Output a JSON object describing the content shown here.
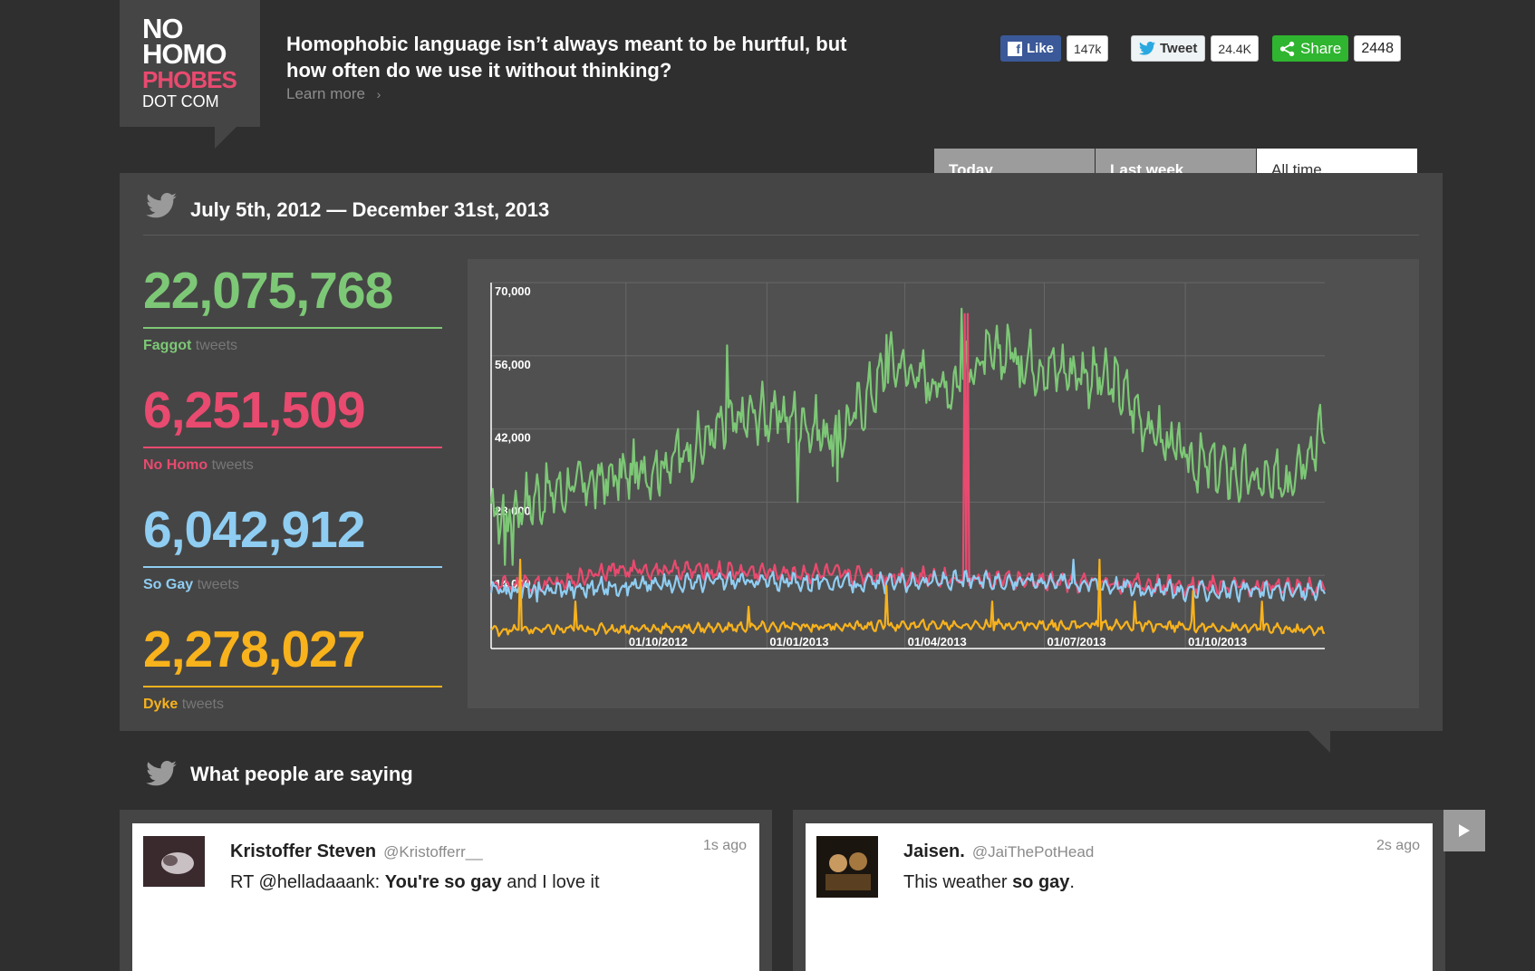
{
  "logo": {
    "line1": "NO",
    "line2": "HOMO",
    "line3": "PHOBES",
    "line4": "DOT COM"
  },
  "header": {
    "tagline": "Homophobic language isn’t always meant to be hurtful, but how often do we use it without thinking?",
    "learn_more": "Learn more"
  },
  "social": {
    "like_label": "Like",
    "like_count": "147k",
    "tweet_label": "Tweet",
    "tweet_count": "24.4K",
    "share_label": "Share",
    "share_count": "2448"
  },
  "tabs": [
    {
      "label": "Today",
      "active": false
    },
    {
      "label": "Last week",
      "active": false
    },
    {
      "label": "All time",
      "active": true
    }
  ],
  "panel": {
    "date_range": "July 5th, 2012 — December 31st, 2013"
  },
  "stats": [
    {
      "number": "22,075,768",
      "term": "Faggot",
      "suffix": "tweets",
      "color": "#7dc876"
    },
    {
      "number": "6,251,509",
      "term": "No Homo",
      "suffix": "tweets",
      "color": "#e94a6f"
    },
    {
      "number": "6,042,912",
      "term": "So Gay",
      "suffix": "tweets",
      "color": "#8fcdf2"
    },
    {
      "number": "2,278,027",
      "term": "Dyke",
      "suffix": "tweets",
      "color": "#f8b21c"
    }
  ],
  "chart_data": {
    "type": "line",
    "xlim": [
      "2012-07-05",
      "2013-12-31"
    ],
    "ylim": [
      0,
      70000
    ],
    "yticks": [
      "70,000",
      "56,000",
      "42,000",
      "28,000",
      "14,000"
    ],
    "xticks": [
      "01/10/2012",
      "01/01/2013",
      "01/04/2013",
      "01/07/2013",
      "01/10/2013"
    ],
    "grid": true,
    "series": [
      {
        "name": "Faggot",
        "color": "#7dc876",
        "anchors": [
          [
            0,
            25000
          ],
          [
            15,
            27000
          ],
          [
            40,
            30000
          ],
          [
            70,
            32000
          ],
          [
            100,
            34000
          ],
          [
            120,
            36000
          ],
          [
            150,
            42000
          ],
          [
            175,
            45000
          ],
          [
            200,
            44000
          ],
          [
            225,
            40000
          ],
          [
            250,
            50000
          ],
          [
            262,
            55000
          ],
          [
            280,
            52000
          ],
          [
            300,
            50000
          ],
          [
            320,
            55000
          ],
          [
            340,
            57000
          ],
          [
            360,
            54000
          ],
          [
            385,
            53000
          ],
          [
            410,
            50000
          ],
          [
            430,
            42000
          ],
          [
            455,
            36000
          ],
          [
            480,
            34000
          ],
          [
            510,
            31000
          ],
          [
            545,
            42000
          ]
        ],
        "spikes": [
          [
            9,
            16000
          ],
          [
            14,
            16000
          ],
          [
            122,
            42000
          ],
          [
            154,
            58000
          ],
          [
            200,
            28000
          ],
          [
            226,
            32000
          ],
          [
            258,
            60000
          ],
          [
            307,
            65000
          ],
          [
            345,
            50000
          ],
          [
            520,
            30000
          ]
        ],
        "noise": 7000
      },
      {
        "name": "No Homo",
        "color": "#e94a6f",
        "anchors": [
          [
            0,
            12000
          ],
          [
            50,
            12500
          ],
          [
            70,
            15000
          ],
          [
            120,
            15000
          ],
          [
            200,
            14500
          ],
          [
            300,
            13500
          ],
          [
            400,
            12500
          ],
          [
            545,
            11500
          ]
        ],
        "spikes": [
          [
            309,
            64000
          ],
          [
            311,
            64000
          ]
        ],
        "noise": 2200
      },
      {
        "name": "So Gay",
        "color": "#8fcdf2",
        "anchors": [
          [
            0,
            11000
          ],
          [
            60,
            11500
          ],
          [
            150,
            13000
          ],
          [
            250,
            12500
          ],
          [
            300,
            13000
          ],
          [
            370,
            13000
          ],
          [
            450,
            11000
          ],
          [
            545,
            11000
          ]
        ],
        "spikes": [
          [
            30,
            9000
          ],
          [
            240,
            12000
          ],
          [
            380,
            17000
          ]
        ],
        "noise": 2200
      },
      {
        "name": "Dyke",
        "color": "#f8b21c",
        "anchors": [
          [
            0,
            3500
          ],
          [
            150,
            4000
          ],
          [
            300,
            4500
          ],
          [
            400,
            4500
          ],
          [
            545,
            3500
          ]
        ],
        "spikes": [
          [
            19,
            17000
          ],
          [
            55,
            9000
          ],
          [
            168,
            8000
          ],
          [
            258,
            12000
          ],
          [
            327,
            9000
          ],
          [
            397,
            17000
          ],
          [
            420,
            9000
          ],
          [
            458,
            11000
          ],
          [
            503,
            9000
          ]
        ],
        "noise": 1200
      }
    ]
  },
  "saying": {
    "title": "What people are saying"
  },
  "tweets": [
    {
      "name": "Kristoffer Steven",
      "handle": "@Kristofferr__",
      "ago": "1s ago",
      "pre": "RT @helladaaank: ",
      "bold": "You're so gay",
      "post": " and I love it"
    },
    {
      "name": "Jaisen.",
      "handle": "@JaiThePotHead",
      "ago": "2s ago",
      "pre": "This weather ",
      "bold": "so gay",
      "post": "."
    }
  ]
}
